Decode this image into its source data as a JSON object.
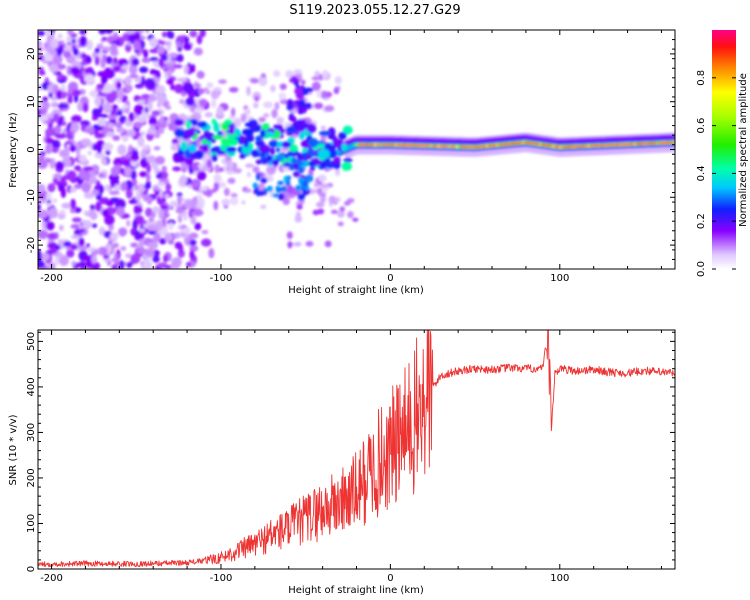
{
  "title": "S119.2023.055.12.27.G29",
  "chart_data": [
    {
      "type": "heatmap",
      "xlabel": "Height of straight line (km)",
      "ylabel": "Frequency (Hz)",
      "xlim": [
        -208,
        168
      ],
      "ylim": [
        -25,
        25
      ],
      "xticks": [
        "-200",
        "-100",
        "0",
        "100"
      ],
      "xtick_values": [
        -200,
        -100,
        0,
        100
      ],
      "yticks": [
        "-20",
        "-10",
        "0",
        "10",
        "20"
      ],
      "ytick_values": [
        -20,
        -10,
        0,
        10,
        20
      ],
      "colorbar": {
        "label": "Normalized spectral amplitude",
        "range": [
          0,
          1
        ],
        "ticks": [
          "0.0",
          "0.2",
          "0.4",
          "0.6",
          "0.8"
        ],
        "tick_values": [
          0,
          0.2,
          0.4,
          0.6,
          0.8
        ]
      },
      "ridge_profile": [
        {
          "x": -120,
          "freq": 2
        },
        {
          "x": -60,
          "freq": 1.5
        },
        {
          "x": -30,
          "freq": -0.5
        },
        {
          "x": -20,
          "freq": 1
        },
        {
          "x": 0,
          "freq": 1
        },
        {
          "x": 50,
          "freq": 0.5
        },
        {
          "x": 80,
          "freq": 1.5
        },
        {
          "x": 100,
          "freq": 0.5
        },
        {
          "x": 168,
          "freq": 1.5
        }
      ]
    },
    {
      "type": "line",
      "xlabel": "Height of straight line (km)",
      "ylabel": "SNR (10 * v/v)",
      "xlim": [
        -208,
        168
      ],
      "ylim": [
        0,
        525
      ],
      "xticks": [
        "-200",
        "-100",
        "0",
        "100"
      ],
      "xtick_values": [
        -200,
        -100,
        0,
        100
      ],
      "yticks": [
        "0",
        "100",
        "200",
        "300",
        "400",
        "500"
      ],
      "ytick_values": [
        0,
        100,
        200,
        300,
        400,
        500
      ],
      "series": [
        {
          "name": "SNR",
          "color": "#ee3333",
          "x": [
            -208,
            -180,
            -150,
            -120,
            -110,
            -100,
            -90,
            -80,
            -70,
            -60,
            -50,
            -40,
            -30,
            -20,
            -10,
            0,
            10,
            20,
            25,
            30,
            40,
            50,
            60,
            70,
            80,
            90,
            93,
            95,
            97,
            100,
            110,
            120,
            130,
            140,
            150,
            160,
            168
          ],
          "values": [
            10,
            12,
            11,
            14,
            18,
            25,
            40,
            55,
            75,
            90,
            110,
            130,
            145,
            170,
            220,
            260,
            300,
            360,
            400,
            425,
            435,
            440,
            438,
            442,
            440,
            440,
            520,
            300,
            430,
            440,
            435,
            438,
            432,
            430,
            436,
            432,
            430
          ]
        }
      ]
    }
  ]
}
